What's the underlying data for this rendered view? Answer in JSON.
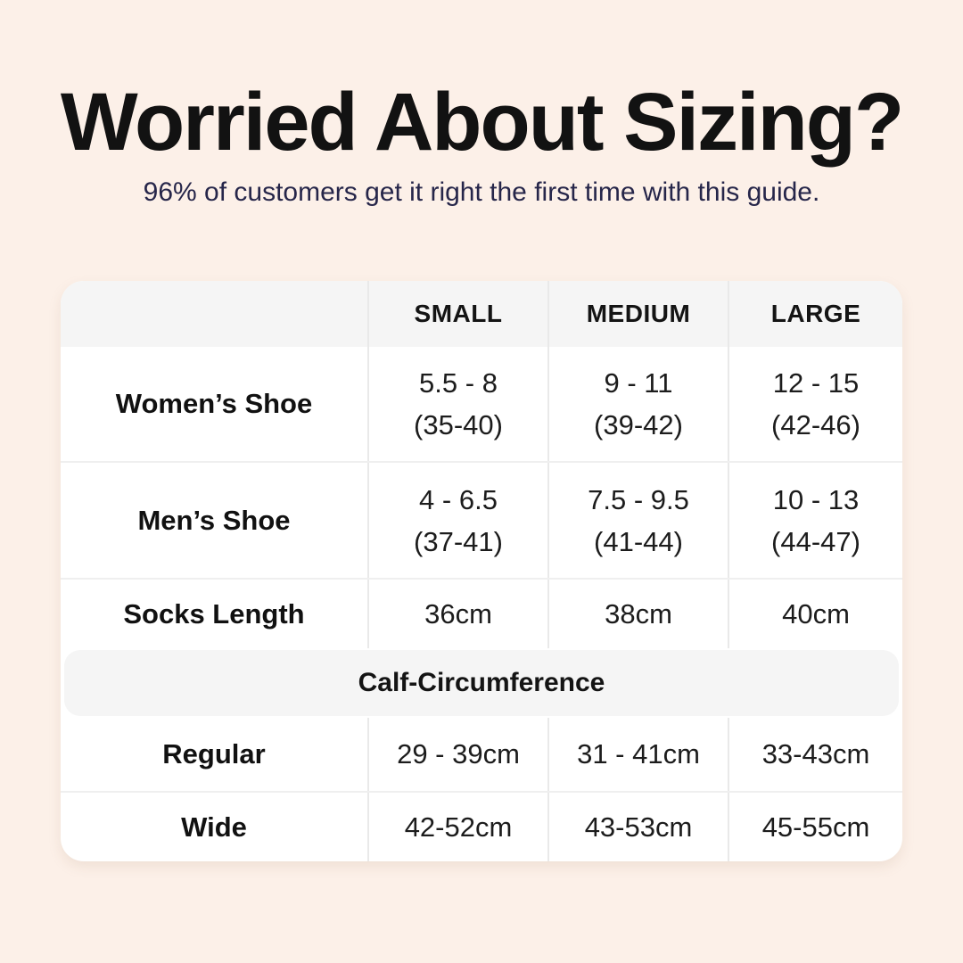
{
  "colors": {
    "background": "#fcf0e8",
    "card": "#ffffff",
    "band_gray": "#f5f5f5",
    "divider": "#e9e9e9",
    "title_text": "#121212",
    "subtitle_text": "#26264a",
    "table_text": "#1c1c1c"
  },
  "header": {
    "title": "Worried About Sizing?",
    "subtitle": "96% of customers get it right the first time with this guide."
  },
  "table": {
    "column_headers": [
      "SMALL",
      "MEDIUM",
      "LARGE"
    ],
    "rows": [
      {
        "label": "Women’s Shoe",
        "small": [
          "5.5 - 8",
          "(35-40)"
        ],
        "medium": [
          "9 - 11",
          "(39-42)"
        ],
        "large": [
          "12 - 15",
          "(42-46)"
        ]
      },
      {
        "label": "Men’s Shoe",
        "small": [
          "4 - 6.5",
          "(37-41)"
        ],
        "medium": [
          "7.5 - 9.5",
          "(41-44)"
        ],
        "large": [
          "10 - 13",
          "(44-47)"
        ]
      }
    ],
    "socks_row": {
      "label": "Socks Length",
      "small": "36cm",
      "medium": "38cm",
      "large": "40cm"
    },
    "calf_section": {
      "header": "Calf-Circumference",
      "rows": [
        {
          "label": "Regular",
          "small": "29 - 39cm",
          "medium": "31 - 41cm",
          "large": "33-43cm"
        },
        {
          "label": "Wide",
          "small": "42-52cm",
          "medium": "43-53cm",
          "large": "45-55cm"
        }
      ]
    }
  },
  "chart_data": {
    "type": "table",
    "title": "Worried About Sizing?",
    "subtitle": "96% of customers get it right the first time with this guide.",
    "columns": [
      "",
      "SMALL",
      "MEDIUM",
      "LARGE"
    ],
    "rows": [
      [
        "Women’s Shoe",
        "5.5 - 8 (35-40)",
        "9 - 11 (39-42)",
        "12 - 15 (42-46)"
      ],
      [
        "Men’s Shoe",
        "4 - 6.5 (37-41)",
        "7.5 - 9.5 (41-44)",
        "10 - 13 (44-47)"
      ],
      [
        "Socks Length",
        "36cm",
        "38cm",
        "40cm"
      ],
      [
        "Calf-Circumference",
        "",
        "",
        ""
      ],
      [
        "Regular",
        "29 - 39cm",
        "31 - 41cm",
        "33-43cm"
      ],
      [
        "Wide",
        "42-52cm",
        "43-53cm",
        "45-55cm"
      ]
    ],
    "layout": {
      "grid": "off",
      "section_header_row_index": 3
    }
  }
}
